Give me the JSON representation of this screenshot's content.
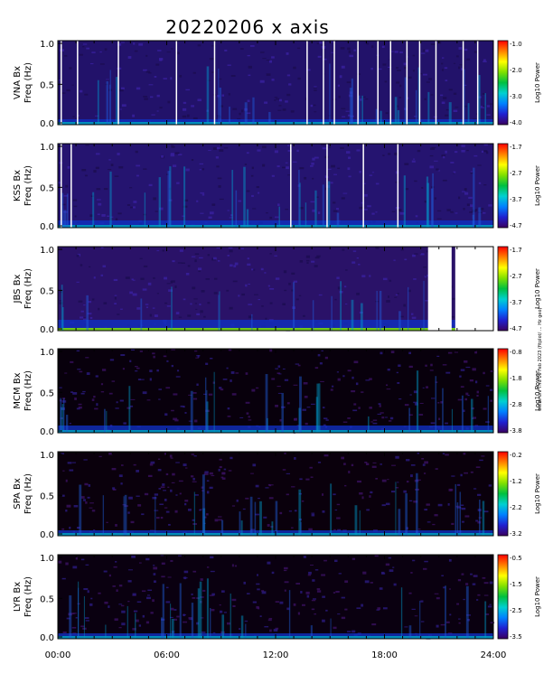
{
  "title": "20220206 x axis",
  "side_note": "weiss-unf Thu 16 Feb 2023 (fitplot/ ... Hz geo)",
  "colors": {
    "colorbar_stops": [
      "#3a0060",
      "#2020d0",
      "#0080ff",
      "#00d0d0",
      "#00c040",
      "#80e000",
      "#ffff00",
      "#ff8000",
      "#ff0000"
    ]
  },
  "chart_data": [
    {
      "type": "heatmap",
      "ylabel": "VNA Bx",
      "ylabel_unit": "Freq (Hz)",
      "ylim": [
        0,
        1.0
      ],
      "yticks": [
        "1.0",
        "0.5",
        "0.0"
      ],
      "colorbar": {
        "label": "Log10 Power",
        "ticks": [
          "-1.0",
          "-2.0",
          "-3.0",
          "-4.0"
        ],
        "range": [
          -4.0,
          -1.0
        ]
      },
      "data_gaps_hours": [
        0.15,
        1.05,
        3.3,
        6.5,
        8.6,
        13.7,
        14.6,
        15.2,
        16.5,
        17.6,
        18.3,
        19.2,
        19.9,
        20.8,
        22.3,
        23.1
      ]
    },
    {
      "type": "heatmap",
      "ylabel": "KSS Bx",
      "ylabel_unit": "Freq (Hz)",
      "ylim": [
        0,
        1.0
      ],
      "yticks": [
        "1.0",
        "0.5",
        "0.0"
      ],
      "colorbar": {
        "label": "Log10 Power",
        "ticks": [
          "-1.7",
          "-2.7",
          "-3.7",
          "-4.7"
        ],
        "range": [
          -4.7,
          -1.7
        ]
      },
      "data_gaps_hours": [
        0.15,
        0.7,
        12.8,
        14.8,
        16.8,
        18.7
      ]
    },
    {
      "type": "heatmap",
      "ylabel": "JBS Bx",
      "ylabel_unit": "Freq (Hz)",
      "ylim": [
        0,
        1.0
      ],
      "yticks": [
        "1.0",
        "0.5",
        "0.0"
      ],
      "colorbar": {
        "label": "Log10 Power",
        "ticks": [
          "-1.7",
          "-2.7",
          "-3.7",
          "-4.7"
        ],
        "range": [
          -4.7,
          -1.7
        ]
      },
      "no_data_hours": [
        [
          20.4,
          21.7
        ],
        [
          21.9,
          24.0
        ]
      ]
    },
    {
      "type": "heatmap",
      "ylabel": "MCM Bx",
      "ylabel_unit": "Freq (Hz)",
      "ylim": [
        0,
        1.0
      ],
      "yticks": [
        "1.0",
        "0.5",
        "0.0"
      ],
      "colorbar": {
        "label": "Log10 Power",
        "ticks": [
          "-0.8",
          "-1.8",
          "-2.8",
          "-3.8"
        ],
        "range": [
          -3.8,
          -0.8
        ]
      }
    },
    {
      "type": "heatmap",
      "ylabel": "SPA Bx",
      "ylabel_unit": "Freq (Hz)",
      "ylim": [
        0,
        1.0
      ],
      "yticks": [
        "1.0",
        "0.5",
        "0.0"
      ],
      "colorbar": {
        "label": "Log10 Power",
        "ticks": [
          "-0.2",
          "-1.2",
          "-2.2",
          "-3.2"
        ],
        "range": [
          -3.2,
          -0.2
        ]
      }
    },
    {
      "type": "heatmap",
      "ylabel": "LYR Bx",
      "ylabel_unit": "Freq (Hz)",
      "ylim": [
        0,
        1.0
      ],
      "yticks": [
        "1.0",
        "0.5",
        "0.0"
      ],
      "colorbar": {
        "label": "Log10 Power",
        "ticks": [
          "-0.5",
          "-1.5",
          "-2.5",
          "-3.5"
        ],
        "range": [
          -3.5,
          -0.5
        ]
      }
    }
  ],
  "xaxis": {
    "ticks": [
      "00:00",
      "06:00",
      "12:00",
      "18:00",
      "24:00"
    ],
    "range_hours": [
      0,
      24
    ]
  }
}
